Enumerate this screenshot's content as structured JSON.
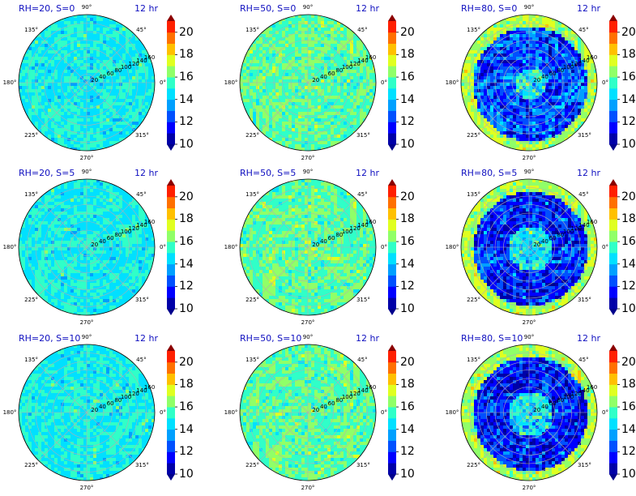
{
  "chart_data": {
    "type": "heatmap",
    "projection": "polar",
    "panels": [
      {
        "label": "RH=20, S=0",
        "time": "12 hr",
        "rh": 20,
        "s": 0
      },
      {
        "label": "RH=50, S=0",
        "time": "12 hr",
        "rh": 50,
        "s": 0
      },
      {
        "label": "RH=80, S=0",
        "time": "12 hr",
        "rh": 80,
        "s": 0
      },
      {
        "label": "RH=20, S=5",
        "time": "12 hr",
        "rh": 20,
        "s": 5
      },
      {
        "label": "RH=50, S=5",
        "time": "12 hr",
        "rh": 50,
        "s": 5
      },
      {
        "label": "RH=80, S=5",
        "time": "12 hr",
        "rh": 80,
        "s": 5
      },
      {
        "label": "RH=20, S=10",
        "time": "12 hr",
        "rh": 20,
        "s": 10
      },
      {
        "label": "RH=50, S=10",
        "time": "12 hr",
        "rh": 50,
        "s": 10
      },
      {
        "label": "RH=80, S=10",
        "time": "12 hr",
        "rh": 80,
        "s": 10
      }
    ],
    "angular_ticks": [
      "0°",
      "45°",
      "90°",
      "135°",
      "180°",
      "225°",
      "270°",
      "315°"
    ],
    "radial_ticks": [
      "20",
      "40",
      "60",
      "80",
      "100",
      "120",
      "140",
      "160"
    ],
    "colorbar": {
      "min": 10,
      "max": 21,
      "extend": "both",
      "ticks": [
        "10",
        "12",
        "14",
        "16",
        "18",
        "20"
      ],
      "colormap": "jet",
      "levels": [
        10,
        11,
        12,
        13,
        14,
        15,
        16,
        17,
        18,
        19,
        20,
        21
      ]
    },
    "grid": true
  }
}
